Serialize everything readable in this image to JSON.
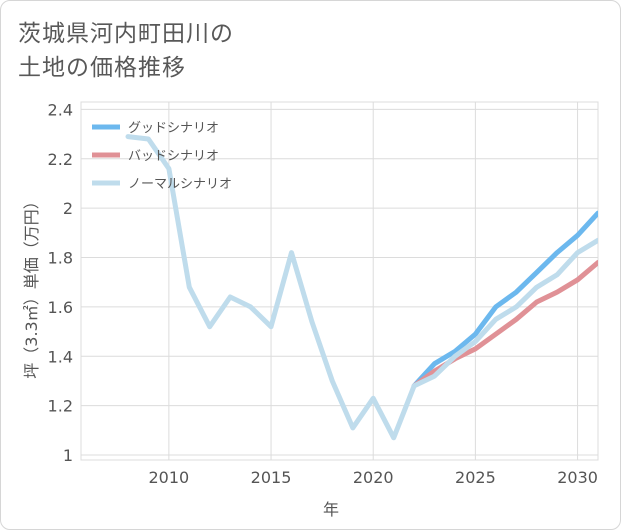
{
  "title_line1": "茨城県河内町田川の",
  "title_line2": "土地の価格推移",
  "chart_data": {
    "type": "line",
    "title": "茨城県河内町田川の土地の価格推移",
    "xlabel": "年",
    "ylabel": "坪（3.3㎡）単価（万円）",
    "xlim": [
      2005.7,
      2031
    ],
    "ylim": [
      0.98,
      2.43
    ],
    "xticks": [
      2010,
      2015,
      2020,
      2025,
      2030
    ],
    "yticks": [
      1,
      1.2,
      1.4,
      1.6,
      1.8,
      2,
      2.2,
      2.4
    ],
    "ytick_labels": [
      "1",
      "1.2",
      "1.4",
      "1.6",
      "1.8",
      "2",
      "2.2",
      "2.4"
    ],
    "grid": true,
    "legend_position": "top-left",
    "series": [
      {
        "name": "グッドシナリオ",
        "color": "#6cb8ee",
        "x": [
          2022,
          2023,
          2024,
          2025,
          2026,
          2027,
          2028,
          2029,
          2030,
          2031
        ],
        "values": [
          1.28,
          1.37,
          1.42,
          1.49,
          1.6,
          1.66,
          1.74,
          1.82,
          1.89,
          1.98
        ]
      },
      {
        "name": "バッドシナリオ",
        "color": "#e09196",
        "x": [
          2022,
          2023,
          2024,
          2025,
          2026,
          2027,
          2028,
          2029,
          2030,
          2031
        ],
        "values": [
          1.28,
          1.34,
          1.39,
          1.43,
          1.49,
          1.55,
          1.62,
          1.66,
          1.71,
          1.78
        ]
      },
      {
        "name": "ノーマルシナリオ",
        "color": "#bfdcec",
        "x": [
          2008,
          2009,
          2010,
          2011,
          2012,
          2013,
          2014,
          2015,
          2016,
          2017,
          2018,
          2019,
          2020,
          2021,
          2022,
          2023,
          2024,
          2025,
          2026,
          2027,
          2028,
          2029,
          2030,
          2031
        ],
        "values": [
          2.29,
          2.28,
          2.16,
          1.68,
          1.52,
          1.64,
          1.6,
          1.52,
          1.82,
          1.54,
          1.3,
          1.11,
          1.23,
          1.07,
          1.28,
          1.32,
          1.4,
          1.46,
          1.55,
          1.6,
          1.68,
          1.73,
          1.82,
          1.87
        ]
      }
    ]
  }
}
